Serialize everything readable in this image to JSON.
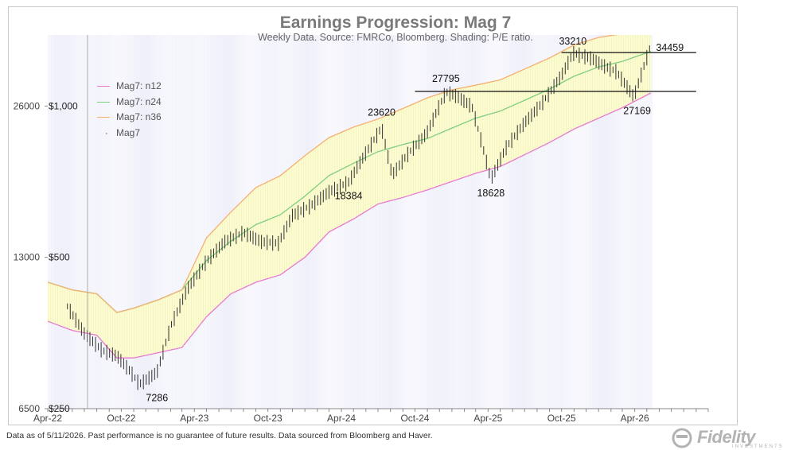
{
  "chart_data": {
    "type": "line",
    "title": "Earnings Progression: Mag 7",
    "subtitle": "Weekly Data.  Source: FMRCo, Bloomberg.  Shading: P/E ratio.",
    "y_scale": "log",
    "ylim": [
      6500,
      36000
    ],
    "yticks": [
      26000,
      13000,
      6500
    ],
    "secondary_ticks": [
      "$1,000",
      "$500",
      "$250"
    ],
    "secondary_tick_values": [
      26000,
      13000,
      6500
    ],
    "xlim": [
      "2022-04-01",
      "2026-10-01"
    ],
    "x_tick_labels": [
      "Apr-22",
      "Oct-22",
      "Apr-23",
      "Oct-23",
      "Apr-24",
      "Oct-24",
      "Apr-25",
      "Oct-25",
      "Apr-26"
    ],
    "x_tick_dates": [
      "2022-04-01",
      "2022-10-01",
      "2023-04-01",
      "2023-10-01",
      "2024-04-01",
      "2024-10-01",
      "2025-04-01",
      "2025-10-01",
      "2026-04-01"
    ],
    "legend": {
      "position": "top-left",
      "entries": [
        {
          "name": "Mag7: n12",
          "color": "#e87ad0"
        },
        {
          "name": "Mag7: n24",
          "color": "#7fcf7f"
        },
        {
          "name": "Mag7: n36",
          "color": "#f5b070"
        },
        {
          "name": "Mag7",
          "color": "#333333"
        }
      ]
    },
    "series": [
      {
        "name": "Mag7: n12",
        "color": "#e87ad0",
        "x": [
          "2022-04-01",
          "2022-06-01",
          "2022-08-01",
          "2022-09-20",
          "2022-11-01",
          "2023-01-01",
          "2023-03-01",
          "2023-05-01",
          "2023-07-01",
          "2023-09-01",
          "2023-11-01",
          "2024-01-01",
          "2024-03-01",
          "2024-05-01",
          "2024-07-01",
          "2024-09-01",
          "2024-11-01",
          "2025-01-01",
          "2025-03-01",
          "2025-05-01",
          "2025-07-01",
          "2025-09-01",
          "2025-11-01",
          "2026-01-01",
          "2026-03-01",
          "2026-05-11"
        ],
        "y": [
          9700,
          9300,
          9100,
          8200,
          8200,
          8400,
          8600,
          9900,
          11000,
          11600,
          12000,
          13000,
          14600,
          15500,
          16600,
          17100,
          17700,
          18400,
          19100,
          19700,
          20800,
          22000,
          23400,
          24600,
          25800,
          27600
        ]
      },
      {
        "name": "Mag7: n24",
        "color": "#7fcf7f",
        "x": [
          "2022-04-01",
          "2022-06-01",
          "2022-08-01",
          "2022-09-20",
          "2022-11-01",
          "2023-01-01",
          "2023-03-01",
          "2023-05-01",
          "2023-07-01",
          "2023-09-01",
          "2023-11-01",
          "2024-01-01",
          "2024-03-01",
          "2024-05-01",
          "2024-07-01",
          "2024-09-01",
          "2024-11-01",
          "2025-01-01",
          "2025-03-01",
          "2025-05-01",
          "2025-07-01",
          "2025-09-01",
          "2025-11-01",
          "2026-01-01",
          "2026-03-01",
          "2026-05-11"
        ],
        "y": [
          11600,
          11200,
          11000,
          10100,
          10300,
          10700,
          11200,
          12800,
          14000,
          15100,
          15800,
          17200,
          18900,
          20000,
          21100,
          21800,
          22400,
          23500,
          24600,
          25400,
          26700,
          28100,
          29800,
          31100,
          31900,
          33400
        ]
      },
      {
        "name": "Mag7: n36",
        "color": "#f5b070",
        "x": [
          "2022-04-01",
          "2022-06-01",
          "2022-08-01",
          "2022-09-20",
          "2022-11-01",
          "2023-01-01",
          "2023-03-01",
          "2023-05-01",
          "2023-07-01",
          "2023-09-01",
          "2023-11-01",
          "2024-01-01",
          "2024-03-01",
          "2024-05-01",
          "2024-07-01",
          "2024-09-01",
          "2024-11-01",
          "2025-01-01",
          "2025-03-01",
          "2025-05-01",
          "2025-07-01",
          "2025-09-01",
          "2025-11-01",
          "2026-01-01",
          "2026-03-01",
          "2026-05-11"
        ],
        "y": [
          11600,
          11200,
          11000,
          10100,
          10300,
          10700,
          11200,
          14200,
          16000,
          17900,
          18900,
          20700,
          22500,
          23600,
          24500,
          25700,
          27000,
          28000,
          28600,
          29300,
          30800,
          32400,
          34400,
          35600,
          36200,
          36600
        ]
      },
      {
        "name": "Mag7",
        "color": "#333333",
        "x": [
          "2022-05-20",
          "2022-07-01",
          "2022-08-15",
          "2022-09-20",
          "2022-10-25",
          "2022-11-15",
          "2022-12-29",
          "2023-02-01",
          "2023-03-15",
          "2023-05-01",
          "2023-06-15",
          "2023-08-01",
          "2023-09-15",
          "2023-10-27",
          "2023-12-01",
          "2024-01-15",
          "2024-03-01",
          "2024-04-19",
          "2024-05-15",
          "2024-07-10",
          "2024-08-05",
          "2024-09-15",
          "2024-10-30",
          "2024-12-17",
          "2025-01-15",
          "2025-02-20",
          "2025-03-15",
          "2025-04-08",
          "2025-05-15",
          "2025-06-30",
          "2025-08-15",
          "2025-10-01",
          "2025-10-29",
          "2025-12-15",
          "2026-01-15",
          "2026-02-15",
          "2026-03-30",
          "2026-05-11"
        ],
        "y": [
          10400,
          9200,
          8500,
          8300,
          7700,
          7286,
          7700,
          9500,
          11300,
          12800,
          14000,
          14600,
          14000,
          13900,
          15800,
          16500,
          17600,
          18384,
          20000,
          23620,
          19000,
          21000,
          23000,
          27795,
          27200,
          26000,
          22200,
          18628,
          21500,
          24100,
          26500,
          30000,
          33210,
          32400,
          31300,
          30500,
          27169,
          34459
        ]
      }
    ],
    "annotations": [
      {
        "text": "7286",
        "x": "2022-12-29",
        "y": 7286
      },
      {
        "text": "23620",
        "x": "2024-07-10",
        "y": 23620
      },
      {
        "text": "18384",
        "x": "2024-04-19",
        "y": 18384
      },
      {
        "text": "27795",
        "x": "2024-12-17",
        "y": 27795
      },
      {
        "text": "18628",
        "x": "2025-04-08",
        "y": 18628
      },
      {
        "text": "33210",
        "x": "2025-10-29",
        "y": 33210
      },
      {
        "text": "34459",
        "x": "2026-05-11",
        "y": 34459
      },
      {
        "text": "27169",
        "x": "2026-03-30",
        "y": 27169
      }
    ],
    "reference_lines": [
      {
        "y": 27795,
        "x_start": "2024-10-01",
        "x_end": "2026-09-01"
      },
      {
        "y": 33210,
        "x_start": "2025-10-01",
        "x_end": "2026-09-01"
      }
    ],
    "colors": {
      "band_fill": "#fbfbd0",
      "band_hatch": "#f0f0a8",
      "pe_shading": "#e6e6f8"
    }
  },
  "footnote": "Data as of 5/11/2026. Past performance is no guarantee of future results. Data sourced from Bloomberg and Haver.",
  "brand": {
    "logo_text": "Fidelity",
    "logo_tagline": "INVESTMENTS"
  }
}
